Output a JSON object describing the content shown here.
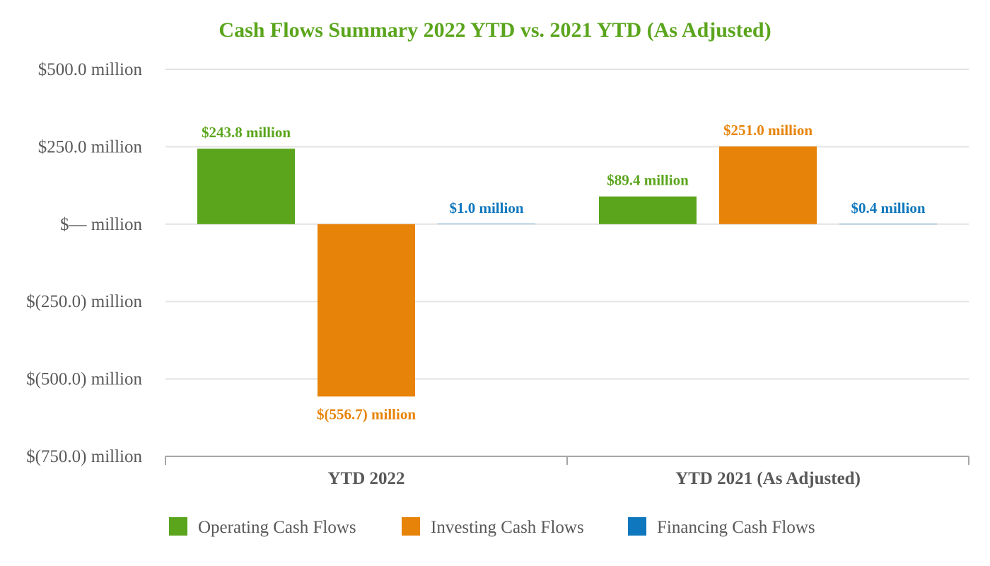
{
  "chart_data": {
    "type": "bar",
    "title": "Cash Flows Summary 2022 YTD vs. 2021 YTD (As Adjusted)",
    "categories": [
      "YTD 2022",
      "YTD 2021 (As Adjusted)"
    ],
    "series": [
      {
        "name": "Operating Cash Flows",
        "color": "#5aa51c",
        "values": [
          243.8,
          89.4
        ],
        "labels": [
          "$243.8 million",
          "$89.4 million"
        ]
      },
      {
        "name": "Investing Cash Flows",
        "color": "#e8830a",
        "values": [
          -556.7,
          251.0
        ],
        "labels": [
          "$(556.7) million",
          "$251.0 million"
        ]
      },
      {
        "name": "Financing Cash Flows",
        "color": "#0e77bd",
        "values": [
          1.0,
          0.4
        ],
        "labels": [
          "$1.0 million",
          "$0.4 million"
        ]
      }
    ],
    "ylim": [
      -750,
      500
    ],
    "yticks": [
      500,
      250,
      0,
      -250,
      -500,
      -750
    ],
    "ytick_labels": [
      "$500.0 million",
      "$250.0 million",
      "$— million",
      "$(250.0) million",
      "$(500.0) million",
      "$(750.0) million"
    ],
    "grid": true,
    "legend": "bottom",
    "xlabel": "",
    "ylabel": "",
    "title_color": "#5aa51c"
  }
}
